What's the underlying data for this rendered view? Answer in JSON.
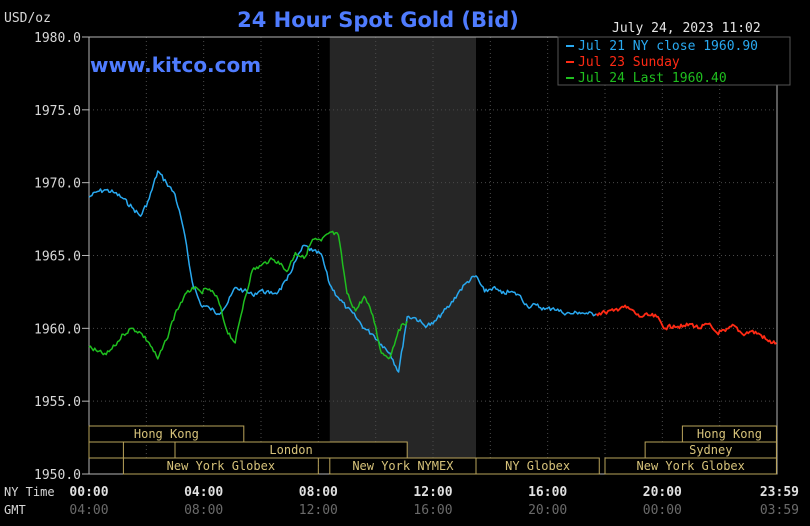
{
  "header": {
    "unit": "USD/oz",
    "title": "24 Hour Spot Gold (Bid)",
    "timestamp": "July 24, 2023 11:02",
    "watermark": "www.kitco.com"
  },
  "legend": [
    {
      "label": "Jul 21 NY close 1960.90",
      "color": "#29a9f0"
    },
    {
      "label": "Jul 23 Sunday",
      "color": "#ff2a14"
    },
    {
      "label": "Jul 24 Last 1960.40",
      "color": "#1fbf1f"
    }
  ],
  "axis": {
    "y_ticks": [
      "1980.0",
      "1975.0",
      "1970.0",
      "1965.0",
      "1960.0",
      "1955.0",
      "1950.0"
    ],
    "ny_time_label": "NY Time",
    "gmt_label": "GMT",
    "ny_ticks": [
      "00:00",
      "04:00",
      "08:00",
      "12:00",
      "16:00",
      "20:00",
      "23:59"
    ],
    "gmt_ticks": [
      "04:00",
      "08:00",
      "12:00",
      "16:00",
      "20:00",
      "00:00",
      "03:59"
    ]
  },
  "sessions": [
    {
      "label": "Hong Kong"
    },
    {
      "label": "London"
    },
    {
      "label": "New York Globex"
    },
    {
      "label": "New York NYMEX"
    },
    {
      "label": "NY Globex"
    },
    {
      "label": "Hong Kong"
    },
    {
      "label": "Sydney"
    },
    {
      "label": "New York Globex"
    }
  ],
  "chart_data": {
    "type": "line",
    "title": "24 Hour Spot Gold (Bid)",
    "ylabel": "USD/oz",
    "xlabel": "NY Time",
    "ylim": [
      1950,
      1980
    ],
    "xlim": [
      0,
      24
    ],
    "grid": true,
    "legend_position": "top-right",
    "shaded_hours": [
      8.4,
      13.5
    ],
    "series": [
      {
        "name": "Jul 21 NY close 1960.90",
        "color": "#29a9f0",
        "x": [
          0,
          0.3,
          0.6,
          0.9,
          1.2,
          1.5,
          1.8,
          2.1,
          2.4,
          2.7,
          3.0,
          3.3,
          3.6,
          3.9,
          4.2,
          4.5,
          4.8,
          5.1,
          5.4,
          5.7,
          6.0,
          6.3,
          6.6,
          6.9,
          7.2,
          7.5,
          7.8,
          8.1,
          8.4,
          8.7,
          9.0,
          9.3,
          9.6,
          9.9,
          10.2,
          10.5,
          10.8,
          11.1,
          11.4,
          11.7,
          12.0,
          12.3,
          12.6,
          12.9,
          13.2,
          13.5,
          13.8,
          14.1,
          14.4,
          14.7,
          15.0,
          15.3,
          15.6,
          15.9,
          16.2,
          16.5,
          16.8,
          17.1,
          17.4,
          17.7
        ],
        "y": [
          1969.0,
          1969.4,
          1969.5,
          1969.3,
          1968.9,
          1968.3,
          1967.7,
          1968.9,
          1970.8,
          1970.0,
          1969.2,
          1966.8,
          1963.2,
          1961.6,
          1961.4,
          1961.0,
          1961.6,
          1962.8,
          1962.6,
          1962.3,
          1962.6,
          1962.4,
          1962.5,
          1963.3,
          1964.6,
          1965.7,
          1965.3,
          1965.1,
          1963.0,
          1962.1,
          1961.4,
          1960.8,
          1960.0,
          1959.6,
          1958.9,
          1958.3,
          1957.0,
          1960.8,
          1960.7,
          1960.2,
          1960.3,
          1961.0,
          1961.6,
          1962.5,
          1963.2,
          1963.6,
          1962.5,
          1962.8,
          1962.4,
          1962.5,
          1962.3,
          1961.5,
          1961.6,
          1961.3,
          1961.4,
          1961.1,
          1961.0,
          1961.1,
          1961.0,
          1961.0
        ]
      },
      {
        "name": "Jul 23 Sunday",
        "color": "#ff2a14",
        "x": [
          17.7,
          18.0,
          18.3,
          18.6,
          18.9,
          19.2,
          19.5,
          19.8,
          20.1,
          20.4,
          20.7,
          21.0,
          21.3,
          21.6,
          21.9,
          22.2,
          22.5,
          22.8,
          23.1,
          23.4,
          23.7,
          23.98
        ],
        "y": [
          1961.0,
          1961.1,
          1961.2,
          1961.5,
          1961.3,
          1960.8,
          1960.9,
          1960.8,
          1960.0,
          1960.2,
          1960.1,
          1960.3,
          1960.0,
          1960.3,
          1959.7,
          1959.8,
          1960.2,
          1959.6,
          1959.8,
          1959.6,
          1959.1,
          1959.0
        ]
      },
      {
        "name": "Jul 24 Last 1960.40",
        "color": "#1fbf1f",
        "x": [
          0,
          0.3,
          0.6,
          0.9,
          1.2,
          1.5,
          1.8,
          2.1,
          2.4,
          2.7,
          3.0,
          3.3,
          3.6,
          3.9,
          4.2,
          4.5,
          4.8,
          5.1,
          5.4,
          5.7,
          6.0,
          6.3,
          6.6,
          6.9,
          7.2,
          7.5,
          7.8,
          8.1,
          8.4,
          8.7,
          9.0,
          9.3,
          9.6,
          9.9,
          10.2,
          10.5,
          10.8,
          11.1
        ],
        "y": [
          1958.7,
          1958.4,
          1958.2,
          1958.8,
          1959.6,
          1960.0,
          1959.7,
          1959.0,
          1957.9,
          1959.2,
          1961.0,
          1962.1,
          1962.8,
          1962.5,
          1962.7,
          1962.0,
          1959.9,
          1959.0,
          1961.8,
          1964.0,
          1964.3,
          1964.7,
          1964.6,
          1963.9,
          1965.2,
          1964.8,
          1966.1,
          1966.0,
          1966.6,
          1966.4,
          1962.4,
          1961.2,
          1962.2,
          1960.9,
          1958.3,
          1958.0,
          1959.9,
          1960.5
        ]
      }
    ]
  }
}
